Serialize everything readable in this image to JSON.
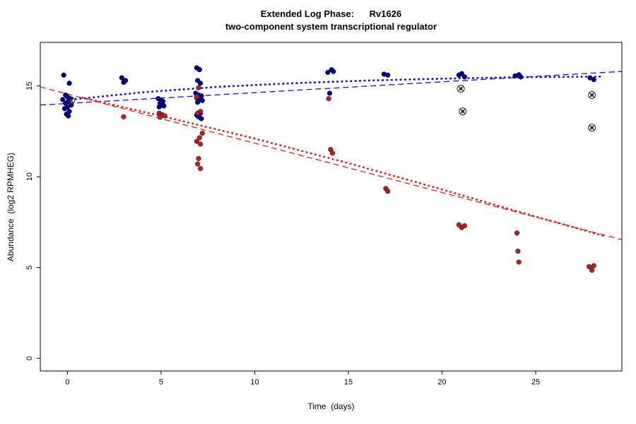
{
  "chart_data": {
    "type": "scatter",
    "title_line1": "Extended Log Phase:      Rv1626",
    "title_line2": "two-component system transcriptional regulator",
    "xlabel": "Time  (days)",
    "ylabel": "Abundance  (log2 RPMHEG)",
    "xlim": [
      -1.45,
      29.6
    ],
    "ylim": [
      -0.7,
      17.4
    ],
    "xticks": [
      0,
      5,
      10,
      15,
      20,
      25
    ],
    "yticks": [
      0,
      5,
      10,
      15
    ],
    "grid": false,
    "legend": "none",
    "colors": {
      "blue_points": "#00008B",
      "red_points": "#B22222",
      "blue_line": "#1414CC",
      "red_line": "#E02020",
      "marker_outline": "#222222"
    },
    "series": [
      {
        "name": "blue-points",
        "marker": "filled-circle",
        "color": "#00008B",
        "points": [
          [
            -0.2,
            15.6
          ],
          [
            0.1,
            15.15
          ],
          [
            -0.1,
            14.5
          ],
          [
            0.0,
            14.4
          ],
          [
            0.15,
            14.3
          ],
          [
            -0.25,
            14.25
          ],
          [
            0.05,
            14.15
          ],
          [
            -0.1,
            14.05
          ],
          [
            0.2,
            13.95
          ],
          [
            0.0,
            13.85
          ],
          [
            -0.15,
            13.75
          ],
          [
            0.1,
            13.6
          ],
          [
            -0.05,
            13.45
          ],
          [
            0.05,
            13.35
          ],
          [
            2.9,
            15.45
          ],
          [
            3.1,
            15.3
          ],
          [
            3.0,
            15.2
          ],
          [
            4.85,
            14.3
          ],
          [
            5.0,
            14.2
          ],
          [
            5.1,
            14.15
          ],
          [
            4.95,
            14.05
          ],
          [
            5.05,
            13.95
          ],
          [
            5.15,
            13.9
          ],
          [
            4.9,
            13.85
          ],
          [
            6.9,
            16.0
          ],
          [
            7.05,
            15.9
          ],
          [
            6.95,
            15.3
          ],
          [
            7.1,
            15.15
          ],
          [
            6.85,
            14.6
          ],
          [
            7.0,
            14.5
          ],
          [
            7.15,
            14.45
          ],
          [
            6.9,
            14.35
          ],
          [
            7.05,
            14.3
          ],
          [
            7.2,
            14.2
          ],
          [
            6.95,
            14.1
          ],
          [
            7.1,
            13.5
          ],
          [
            6.9,
            13.4
          ],
          [
            7.0,
            13.3
          ],
          [
            7.15,
            13.2
          ],
          [
            13.9,
            15.75
          ],
          [
            14.1,
            15.9
          ],
          [
            14.2,
            15.8
          ],
          [
            14.0,
            14.6
          ],
          [
            16.9,
            15.65
          ],
          [
            17.1,
            15.6
          ],
          [
            20.9,
            15.6
          ],
          [
            21.05,
            15.68
          ],
          [
            21.2,
            15.5
          ],
          [
            23.9,
            15.55
          ],
          [
            24.1,
            15.62
          ],
          [
            24.2,
            15.5
          ],
          [
            27.9,
            15.45
          ],
          [
            28.1,
            15.35
          ]
        ]
      },
      {
        "name": "red-points",
        "marker": "filled-circle",
        "color": "#B22222",
        "points": [
          [
            3.0,
            13.3
          ],
          [
            4.9,
            13.5
          ],
          [
            5.05,
            13.42
          ],
          [
            5.2,
            13.35
          ],
          [
            4.95,
            13.28
          ],
          [
            7.0,
            14.9
          ],
          [
            6.9,
            14.4
          ],
          [
            7.1,
            13.6
          ],
          [
            6.95,
            13.5
          ],
          [
            7.2,
            12.4
          ],
          [
            7.05,
            12.15
          ],
          [
            6.9,
            11.95
          ],
          [
            7.1,
            11.8
          ],
          [
            7.0,
            11.0
          ],
          [
            6.95,
            10.7
          ],
          [
            7.1,
            10.45
          ],
          [
            13.95,
            14.3
          ],
          [
            14.05,
            11.5
          ],
          [
            14.15,
            11.3
          ],
          [
            17.0,
            9.35
          ],
          [
            17.1,
            9.2
          ],
          [
            20.9,
            7.35
          ],
          [
            21.05,
            7.2
          ],
          [
            21.2,
            7.3
          ],
          [
            24.0,
            6.9
          ],
          [
            24.05,
            5.9
          ],
          [
            24.1,
            5.3
          ],
          [
            27.85,
            5.05
          ],
          [
            28.1,
            5.1
          ],
          [
            28.0,
            4.85
          ]
        ]
      },
      {
        "name": "circled-x-points",
        "marker": "circle-x",
        "color": "#222222",
        "points_with_color": [
          {
            "x": 0.2,
            "y": 14.2,
            "inner": "#556"
          },
          {
            "x": 21.0,
            "y": 14.85,
            "inner": "#445"
          },
          {
            "x": 21.1,
            "y": 13.6,
            "inner": "#333"
          },
          {
            "x": 28.0,
            "y": 14.5,
            "inner": "#223"
          },
          {
            "x": 28.0,
            "y": 12.7,
            "inner": "#6b1010"
          }
        ]
      }
    ],
    "lines": [
      {
        "name": "blue-dashed-fit",
        "style": "dashed",
        "color": "#1414CC",
        "width": 1.3,
        "points": [
          [
            -1.45,
            13.95
          ],
          [
            29.6,
            15.8
          ]
        ]
      },
      {
        "name": "blue-dotted-fit",
        "style": "dotted",
        "color": "#1414CC",
        "width": 2.8,
        "points": [
          [
            0.2,
            14.25
          ],
          [
            4,
            14.65
          ],
          [
            8,
            14.95
          ],
          [
            12,
            15.15
          ],
          [
            16,
            15.3
          ],
          [
            20,
            15.4
          ],
          [
            24,
            15.48
          ],
          [
            28.6,
            15.52
          ]
        ]
      },
      {
        "name": "red-dashed-fit",
        "style": "dashed",
        "color": "#E02020",
        "width": 1.3,
        "points": [
          [
            -1.45,
            14.95
          ],
          [
            29.6,
            6.53
          ]
        ]
      },
      {
        "name": "red-dotted-fit",
        "style": "dotted",
        "color": "#E02020",
        "width": 2.8,
        "points": [
          [
            0.8,
            14.35
          ],
          [
            5,
            13.35
          ],
          [
            10,
            12.1
          ],
          [
            15,
            10.75
          ],
          [
            20,
            9.3
          ],
          [
            24,
            8.1
          ],
          [
            28.6,
            6.75
          ]
        ]
      }
    ]
  }
}
